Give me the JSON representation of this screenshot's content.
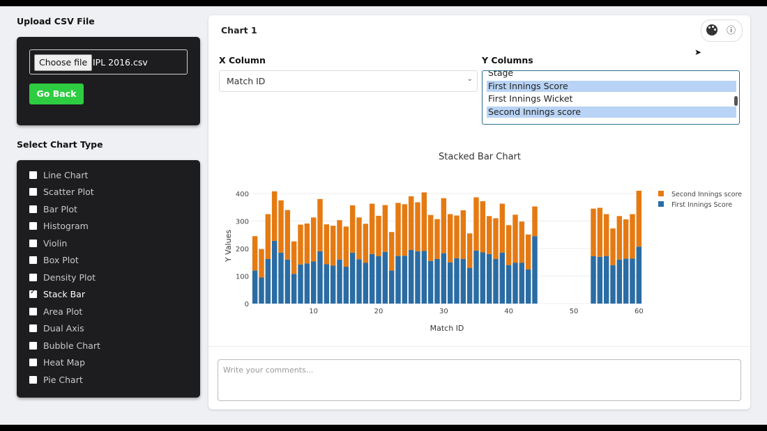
{
  "sidebar": {
    "upload_title": "Upload CSV File",
    "choose_file_label": "Choose file",
    "file_name": "IPL 2016.csv",
    "go_back_label": "Go Back",
    "chart_type_title": "Select Chart Type",
    "chart_types": [
      {
        "label": "Line Chart",
        "checked": false
      },
      {
        "label": "Scatter Plot",
        "checked": false
      },
      {
        "label": "Bar Plot",
        "checked": false
      },
      {
        "label": "Histogram",
        "checked": false
      },
      {
        "label": "Violin",
        "checked": false
      },
      {
        "label": "Box Plot",
        "checked": false
      },
      {
        "label": "Density Plot",
        "checked": false
      },
      {
        "label": "Stack Bar",
        "checked": true
      },
      {
        "label": "Area Plot",
        "checked": false
      },
      {
        "label": "Dual Axis",
        "checked": false
      },
      {
        "label": "Bubble Chart",
        "checked": false
      },
      {
        "label": "Heat Map",
        "checked": false
      },
      {
        "label": "Pie Chart",
        "checked": false
      }
    ]
  },
  "card": {
    "title": "Chart 1",
    "palette_icon": "palette-icon",
    "info_icon": "info-icon",
    "x_label": "X Column",
    "x_value": "Match ID",
    "y_label": "Y Columns",
    "y_options": [
      {
        "label": "Stage",
        "selected": false
      },
      {
        "label": "First Innings Score",
        "selected": true
      },
      {
        "label": "First Innings Wicket",
        "selected": false
      },
      {
        "label": "Second Innings score",
        "selected": true
      }
    ],
    "comment_placeholder": "Write your comments..."
  },
  "chart_data": {
    "type": "bar",
    "stacked": true,
    "title": "Stacked Bar Chart",
    "xlabel": "Match ID",
    "ylabel": "Y Values",
    "xlim": [
      0.5,
      60.5
    ],
    "ylim": [
      0,
      420
    ],
    "xticks": [
      10,
      20,
      30,
      40,
      50,
      60
    ],
    "yticks": [
      0,
      100,
      200,
      300,
      400
    ],
    "legend_position": "top-right",
    "x": [
      1,
      2,
      3,
      4,
      5,
      6,
      7,
      8,
      9,
      10,
      11,
      12,
      13,
      14,
      15,
      16,
      17,
      18,
      19,
      20,
      21,
      22,
      23,
      24,
      25,
      26,
      27,
      28,
      29,
      30,
      31,
      32,
      33,
      34,
      35,
      36,
      37,
      38,
      39,
      40,
      41,
      42,
      43,
      44,
      53,
      54,
      55,
      56,
      57,
      58,
      59,
      60
    ],
    "series": [
      {
        "name": "First Innings Score",
        "color": "#2a6ca3",
        "values": [
          120,
          95,
          162,
          228,
          185,
          160,
          108,
          142,
          146,
          153,
          190,
          143,
          138,
          160,
          134,
          185,
          161,
          148,
          180,
          172,
          188,
          120,
          173,
          174,
          195,
          190,
          191,
          155,
          162,
          183,
          150,
          165,
          162,
          130,
          193,
          186,
          180,
          162,
          185,
          140,
          148,
          148,
          124,
          245,
          172,
          170,
          173,
          140,
          160,
          163,
          164,
          207
        ]
      },
      {
        "name": "Second Innings score",
        "color": "#e57a12",
        "values": [
          125,
          103,
          163,
          180,
          190,
          180,
          118,
          145,
          145,
          160,
          190,
          145,
          145,
          143,
          146,
          172,
          152,
          142,
          183,
          147,
          170,
          140,
          193,
          187,
          195,
          178,
          213,
          167,
          145,
          200,
          175,
          155,
          177,
          125,
          193,
          186,
          138,
          148,
          178,
          145,
          175,
          150,
          127,
          108,
          173,
          178,
          152,
          133,
          158,
          143,
          161,
          203
        ]
      }
    ]
  }
}
